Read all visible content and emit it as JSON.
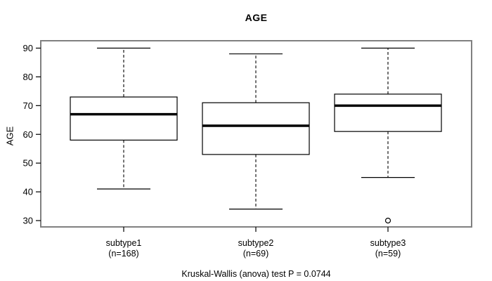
{
  "title": "AGE",
  "chart_data": {
    "type": "boxplot",
    "title": "AGE",
    "xlabel": "",
    "ylabel": "AGE",
    "ylim": [
      30,
      90
    ],
    "yticks": [
      30,
      40,
      50,
      60,
      70,
      80,
      90
    ],
    "grid": false,
    "caption": "Kruskal-Wallis (anova) test P = 0.0744",
    "groups": [
      {
        "label": "subtype1",
        "n_label": "(n=168)",
        "n": 168,
        "whisker_low": 41,
        "q1": 58,
        "median": 67,
        "q3": 73,
        "whisker_high": 90,
        "outliers": []
      },
      {
        "label": "subtype2",
        "n_label": "(n=69)",
        "n": 69,
        "whisker_low": 34,
        "q1": 53,
        "median": 63,
        "q3": 71,
        "whisker_high": 88,
        "outliers": []
      },
      {
        "label": "subtype3",
        "n_label": "(n=59)",
        "n": 59,
        "whisker_low": 45,
        "q1": 61,
        "median": 70,
        "q3": 74,
        "whisker_high": 90,
        "outliers": [
          30
        ]
      }
    ]
  },
  "colors": {
    "frame": "#808080",
    "box_border": "#000000",
    "median": "#000000",
    "whisker": "#000000",
    "text": "#000000",
    "background": "#ffffff"
  }
}
